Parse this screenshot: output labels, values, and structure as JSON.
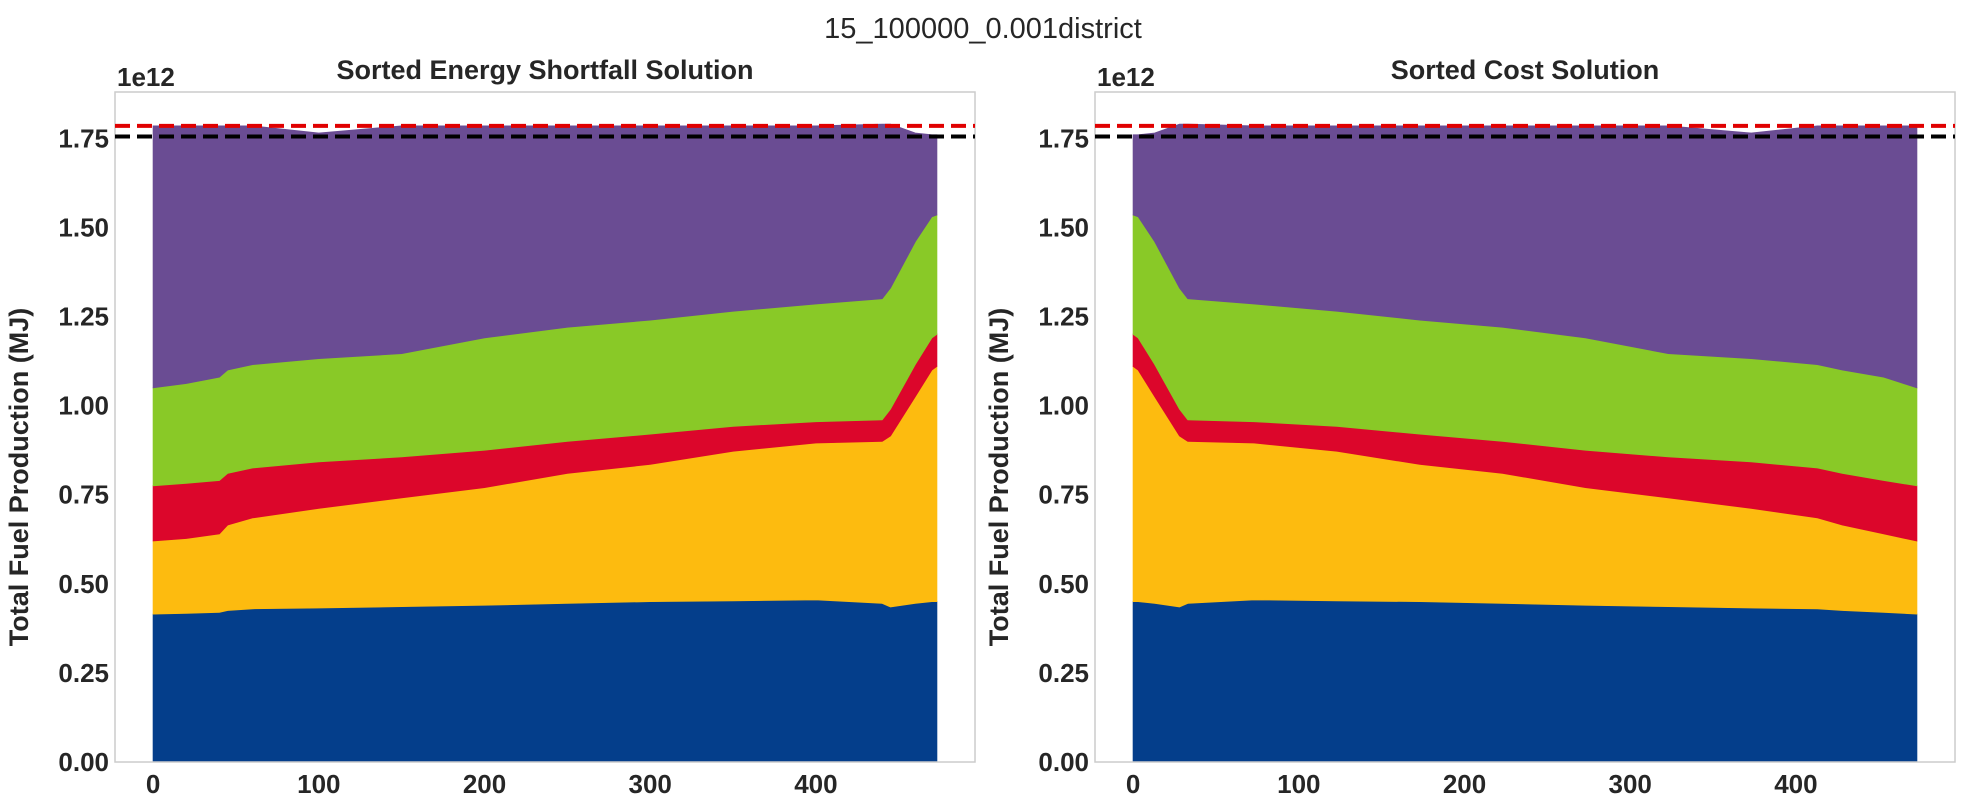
{
  "figure": {
    "suptitle": "15_100000_0.001district"
  },
  "colors": {
    "layers": [
      "#043e8b",
      "#fdbb0f",
      "#dc062b",
      "#89c927",
      "#6a4c93"
    ],
    "red_line": "#e00000",
    "black_line": "#000000",
    "frame": "#cccccc"
  },
  "chart_data": [
    {
      "type": "area",
      "title": "Sorted Energy Shortfall Solution",
      "xlabel": "",
      "ylabel": "Total Fuel Production (MJ)",
      "y_offset_text": "1e12",
      "xlim": [
        -23,
        496
      ],
      "ylim": [
        0,
        1.88
      ],
      "xticks": [
        0,
        100,
        200,
        300,
        400
      ],
      "xtick_labels": [
        "0",
        "100",
        "200",
        "300",
        "400"
      ],
      "yticks": [
        0,
        0.25,
        0.5,
        0.75,
        1.0,
        1.25,
        1.5,
        1.75
      ],
      "ytick_labels": [
        "0.00",
        "0.25",
        "0.50",
        "0.75",
        "1.00",
        "1.25",
        "1.50",
        "1.75"
      ],
      "grid": false,
      "stacked": true,
      "hlines": [
        {
          "y": 1.785,
          "color": "red",
          "style": "dashed"
        },
        {
          "y": 1.755,
          "color": "black",
          "style": "dashed"
        }
      ],
      "x": [
        0,
        20,
        40,
        45,
        60,
        100,
        150,
        200,
        250,
        300,
        350,
        400,
        440,
        445,
        460,
        470,
        473
      ],
      "series": [
        {
          "values": [
            0.415,
            0.417,
            0.42,
            0.425,
            0.43,
            0.432,
            0.436,
            0.44,
            0.445,
            0.45,
            0.452,
            0.455,
            0.445,
            0.435,
            0.445,
            0.45,
            0.45
          ]
        },
        {
          "values": [
            0.205,
            0.21,
            0.22,
            0.24,
            0.255,
            0.28,
            0.305,
            0.33,
            0.365,
            0.385,
            0.42,
            0.44,
            0.455,
            0.48,
            0.58,
            0.65,
            0.66
          ]
        },
        {
          "values": [
            0.155,
            0.155,
            0.15,
            0.145,
            0.14,
            0.13,
            0.115,
            0.105,
            0.09,
            0.085,
            0.07,
            0.06,
            0.06,
            0.075,
            0.09,
            0.09,
            0.09
          ]
        },
        {
          "values": [
            0.275,
            0.28,
            0.29,
            0.29,
            0.29,
            0.29,
            0.29,
            0.315,
            0.32,
            0.32,
            0.323,
            0.33,
            0.34,
            0.34,
            0.345,
            0.34,
            0.335
          ]
        },
        {
          "values": [
            0.735,
            0.723,
            0.705,
            0.685,
            0.67,
            0.633,
            0.639,
            0.595,
            0.565,
            0.545,
            0.52,
            0.5,
            0.49,
            0.46,
            0.305,
            0.23,
            0.225
          ]
        }
      ]
    },
    {
      "type": "area",
      "title": "Sorted Cost Solution",
      "xlabel": "",
      "ylabel": "Total Fuel Production (MJ)",
      "y_offset_text": "1e12",
      "xlim": [
        -23,
        496
      ],
      "ylim": [
        0,
        1.88
      ],
      "xticks": [
        0,
        100,
        200,
        300,
        400
      ],
      "xtick_labels": [
        "0",
        "100",
        "200",
        "300",
        "400"
      ],
      "yticks": [
        0,
        0.25,
        0.5,
        0.75,
        1.0,
        1.25,
        1.5,
        1.75
      ],
      "ytick_labels": [
        "0.00",
        "0.25",
        "0.50",
        "0.75",
        "1.00",
        "1.25",
        "1.50",
        "1.75"
      ],
      "grid": false,
      "stacked": true,
      "hlines": [
        {
          "y": 1.785,
          "color": "red",
          "style": "dashed"
        },
        {
          "y": 1.755,
          "color": "black",
          "style": "dashed"
        }
      ],
      "x": [
        0,
        3,
        13,
        28,
        33,
        73,
        123,
        173,
        223,
        273,
        323,
        373,
        413,
        428,
        453,
        473
      ],
      "series": [
        {
          "values": [
            0.45,
            0.45,
            0.445,
            0.435,
            0.445,
            0.455,
            0.452,
            0.45,
            0.445,
            0.44,
            0.436,
            0.432,
            0.43,
            0.425,
            0.42,
            0.415
          ]
        },
        {
          "values": [
            0.66,
            0.65,
            0.58,
            0.48,
            0.455,
            0.44,
            0.42,
            0.385,
            0.365,
            0.33,
            0.305,
            0.28,
            0.255,
            0.24,
            0.22,
            0.205
          ]
        },
        {
          "values": [
            0.09,
            0.09,
            0.09,
            0.075,
            0.06,
            0.06,
            0.07,
            0.085,
            0.09,
            0.105,
            0.115,
            0.13,
            0.14,
            0.145,
            0.15,
            0.155
          ]
        },
        {
          "values": [
            0.335,
            0.34,
            0.345,
            0.34,
            0.34,
            0.33,
            0.323,
            0.32,
            0.32,
            0.315,
            0.29,
            0.29,
            0.29,
            0.29,
            0.29,
            0.275
          ]
        },
        {
          "values": [
            0.225,
            0.23,
            0.305,
            0.46,
            0.49,
            0.5,
            0.52,
            0.545,
            0.565,
            0.595,
            0.639,
            0.633,
            0.67,
            0.685,
            0.705,
            0.735
          ]
        }
      ]
    }
  ]
}
